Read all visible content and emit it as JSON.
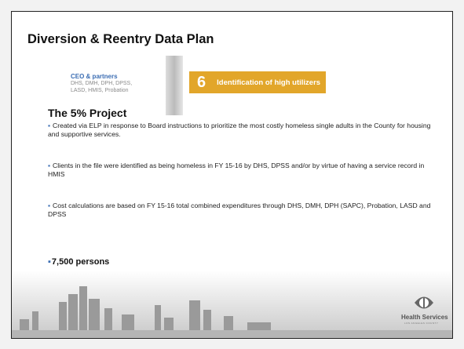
{
  "slide": {
    "title": "Diversion & Reentry Data Plan",
    "partners": {
      "heading": "CEO & partners",
      "lines": [
        "DHS, DMH, DPH, DPSS,",
        "LASD, HMIS, Probation"
      ]
    },
    "badge": {
      "number": "6",
      "label": "Identification of high utilizers"
    },
    "subtitle": "The 5% Project",
    "bullets": [
      "Created via ELP in response to Board instructions to prioritize the most costly homeless single adults in the County for housing and supportive services.",
      "Clients in the file were identified as being homeless in FY 15-16 by DHS, DPSS and/or by virtue of having a service record in HMIS",
      "Cost calculations are based on FY 15-16 total combined expenditures through DHS, DMH, DPH (SAPC), Probation, LASD and DPSS"
    ],
    "highlight": "7,500 persons",
    "logo": {
      "name": "Health Services",
      "tagline": "LOS ANGELES COUNTY"
    }
  }
}
